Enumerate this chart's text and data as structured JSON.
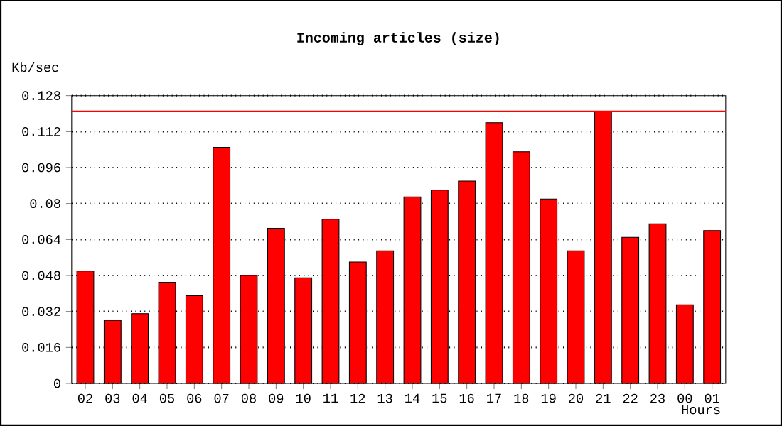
{
  "chart_data": {
    "type": "bar",
    "title": "Incoming articles (size)",
    "xlabel": "Hours",
    "ylabel": "Kb/sec",
    "categories": [
      "02",
      "03",
      "04",
      "05",
      "06",
      "07",
      "08",
      "09",
      "10",
      "11",
      "12",
      "13",
      "14",
      "15",
      "16",
      "17",
      "18",
      "19",
      "20",
      "21",
      "22",
      "23",
      "00",
      "01"
    ],
    "values": [
      0.05,
      0.028,
      0.031,
      0.045,
      0.039,
      0.105,
      0.048,
      0.069,
      0.047,
      0.073,
      0.054,
      0.059,
      0.083,
      0.086,
      0.09,
      0.116,
      0.103,
      0.082,
      0.059,
      0.121,
      0.065,
      0.071,
      0.035,
      0.068
    ],
    "color": "#ff0000",
    "ylim": [
      0,
      0.128
    ],
    "yticks": [
      0,
      0.016,
      0.032,
      0.048,
      0.064,
      0.08,
      0.096,
      0.112,
      0.128
    ],
    "grid": "y",
    "ref_lines": [
      {
        "axis": "y",
        "value": 0.121,
        "color": "#ff0000"
      }
    ]
  }
}
